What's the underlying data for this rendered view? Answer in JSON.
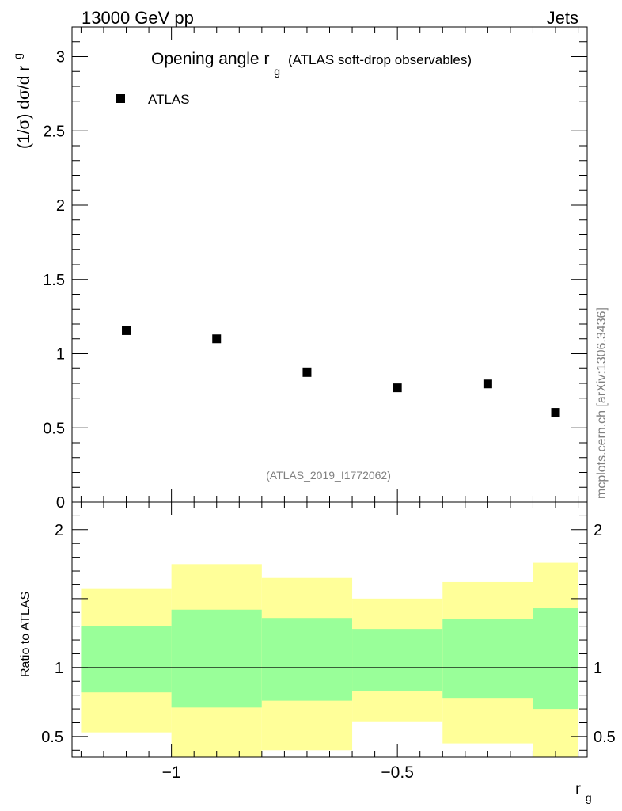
{
  "header": {
    "left": "13000 GeV pp",
    "right": "Jets"
  },
  "chart_data": [
    {
      "type": "scatter",
      "title_main": "Opening angle r",
      "title_sub": "g",
      "title_note": "(ATLAS soft-drop observables)",
      "ylabel_main": "(1/σ) dσ/d r",
      "ylabel_sub": "g",
      "xlim": [
        -1.22,
        -0.08
      ],
      "ylim": [
        0,
        3.2
      ],
      "yticks": [
        {
          "v": 0,
          "label": "0"
        },
        {
          "v": 0.5,
          "label": "0.5"
        },
        {
          "v": 1,
          "label": "1"
        },
        {
          "v": 1.5,
          "label": "1.5"
        },
        {
          "v": 2,
          "label": "2"
        },
        {
          "v": 2.5,
          "label": "2.5"
        },
        {
          "v": 3,
          "label": "3"
        }
      ],
      "series": [
        {
          "name": "ATLAS",
          "color": "#000000",
          "points": [
            [
              -1.1,
              1.155
            ],
            [
              -0.9,
              1.1
            ],
            [
              -0.7,
              0.873
            ],
            [
              -0.5,
              0.77
            ],
            [
              -0.3,
              0.796
            ],
            [
              -0.15,
              0.605
            ]
          ]
        }
      ],
      "legend": {
        "position": "top-left"
      },
      "analysis_label": "(ATLAS_2019_I1772062)"
    },
    {
      "type": "area",
      "ylabel": "Ratio to ATLAS",
      "xlabel_main": "r",
      "xlabel_sub": "g",
      "xlim": [
        -1.22,
        -0.08
      ],
      "ylim": [
        0.35,
        2.2
      ],
      "xticks": [
        {
          "v": -1,
          "label": "−1"
        },
        {
          "v": -0.5,
          "label": "−0.5"
        }
      ],
      "yticks": [
        {
          "v": 0.5,
          "label": "0.5"
        },
        {
          "v": 1,
          "label": "1"
        },
        {
          "v": 2,
          "label": "2"
        }
      ],
      "reference_line": 1,
      "bins": [
        {
          "lo": -1.2,
          "hi": -1.0,
          "inner": [
            0.82,
            1.3
          ],
          "outer": [
            0.53,
            1.57
          ]
        },
        {
          "lo": -1.0,
          "hi": -0.8,
          "inner": [
            0.71,
            1.42
          ],
          "outer": [
            0.35,
            1.75
          ]
        },
        {
          "lo": -0.8,
          "hi": -0.6,
          "inner": [
            0.76,
            1.36
          ],
          "outer": [
            0.4,
            1.65
          ]
        },
        {
          "lo": -0.6,
          "hi": -0.4,
          "inner": [
            0.83,
            1.28
          ],
          "outer": [
            0.61,
            1.5
          ]
        },
        {
          "lo": -0.4,
          "hi": -0.2,
          "inner": [
            0.78,
            1.35
          ],
          "outer": [
            0.45,
            1.62
          ]
        },
        {
          "lo": -0.2,
          "hi": -0.1,
          "inner": [
            0.7,
            1.43
          ],
          "outer": [
            0.35,
            1.76
          ]
        }
      ],
      "colors": {
        "inner": "#99ff99",
        "outer": "#ffff99"
      }
    }
  ],
  "side_label": "mcplots.cern.ch [arXiv:1306.3436]"
}
